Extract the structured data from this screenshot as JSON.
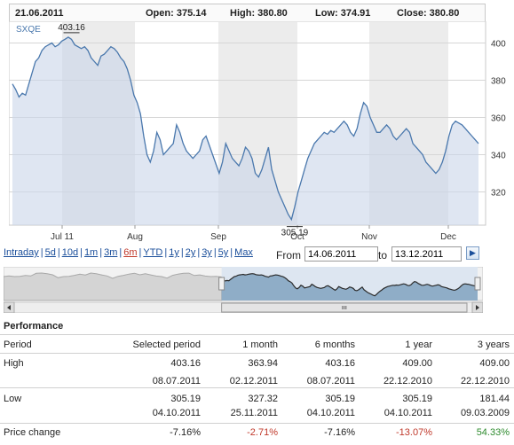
{
  "ohlc": {
    "date": "21.06.2011",
    "open": "Open: 375.14",
    "high": "High: 380.80",
    "low": "Low: 374.91",
    "close": "Close: 380.80"
  },
  "chart_data": {
    "type": "line",
    "symbol": "SXQE",
    "y_ticks": [
      "400",
      "380",
      "360",
      "340",
      "320"
    ],
    "ylim": [
      305,
      405
    ],
    "x_ticks": [
      "Jul 11",
      "Aug",
      "Sep",
      "Oct",
      "Nov",
      "Dec"
    ],
    "annotations": [
      {
        "label": "403.16",
        "x_index": 18,
        "value": 403.16
      },
      {
        "label": "305.19",
        "x_index": 86,
        "value": 305.19
      }
    ],
    "grid": true,
    "series": [
      {
        "values": [
          378,
          375,
          371,
          373,
          372,
          378,
          384,
          390,
          392,
          396,
          398,
          399,
          400,
          398,
          399,
          401,
          402,
          403.16,
          402,
          399,
          398,
          397,
          398,
          396,
          392,
          390,
          388,
          393,
          394,
          396,
          398,
          397,
          395,
          392,
          390,
          386,
          380,
          372,
          368,
          362,
          350,
          340,
          336,
          342,
          352,
          348,
          340,
          342,
          344,
          346,
          356,
          352,
          346,
          342,
          340,
          338,
          340,
          342,
          348,
          350,
          345,
          340,
          335,
          330,
          336,
          346,
          342,
          338,
          336,
          334,
          338,
          344,
          342,
          338,
          330,
          328,
          332,
          338,
          344,
          332,
          326,
          320,
          316,
          312,
          308,
          305.19,
          312,
          320,
          326,
          332,
          338,
          342,
          346,
          348,
          350,
          352,
          351,
          353,
          352,
          354,
          356,
          358,
          356,
          352,
          350,
          354,
          362,
          368,
          366,
          360,
          356,
          352,
          352,
          354,
          356,
          354,
          350,
          348,
          350,
          352,
          354,
          352,
          346,
          344,
          342,
          340,
          336,
          334,
          332,
          330,
          332,
          336,
          342,
          350,
          356,
          358,
          357,
          356,
          354,
          352,
          350,
          348,
          346
        ]
      }
    ]
  },
  "ranges": {
    "items": [
      "Intraday",
      "5d",
      "10d",
      "1m",
      "3m",
      "6m",
      "YTD",
      "1y",
      "2y",
      "3y",
      "5y",
      "Max"
    ],
    "active": "6m"
  },
  "period": {
    "from_label": "From",
    "to_label": "to",
    "from_value": "14.06.2011",
    "to_value": "13.12.2011",
    "go_icon": "triangle-right-icon"
  },
  "navigator": {
    "selection_start": 0.46,
    "selection_end": 1.0
  },
  "performance": {
    "title": "Performance",
    "headers": [
      "Period",
      "Selected period",
      "1 month",
      "6 months",
      "1 year",
      "3 years"
    ],
    "rows": [
      {
        "label": "High",
        "values": [
          "403.16",
          "363.94",
          "403.16",
          "409.00",
          "409.00"
        ],
        "dates": [
          "08.07.2011",
          "02.12.2011",
          "08.07.2011",
          "22.12.2010",
          "22.12.2010"
        ]
      },
      {
        "label": "Low",
        "values": [
          "305.19",
          "327.32",
          "305.19",
          "305.19",
          "181.44"
        ],
        "dates": [
          "04.10.2011",
          "25.11.2011",
          "04.10.2011",
          "04.10.2011",
          "09.03.2009"
        ]
      },
      {
        "label": "Price change",
        "values": [
          "-7.16%",
          "-2.71%",
          "-7.16%",
          "-13.07%",
          "54.33%"
        ]
      }
    ],
    "colors": {
      "negative": "#c0392b",
      "positive": "#2e8b2e"
    }
  }
}
